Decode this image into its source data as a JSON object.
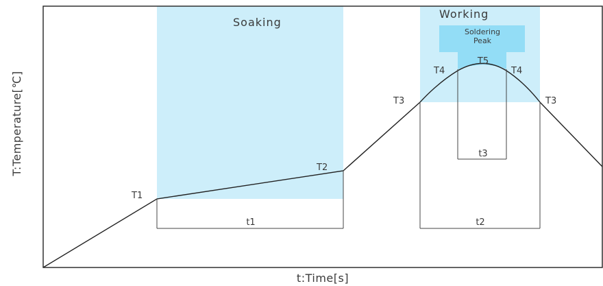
{
  "axes": {
    "x_label": "t:Time[s]",
    "y_label": "T:Temperature[℃]"
  },
  "zones": {
    "soaking": "Soaking",
    "working": "Working",
    "peak_line1": "Soldering",
    "peak_line2": "Peak"
  },
  "points": {
    "T1": "T1",
    "T2": "T2",
    "T3_left": "T3",
    "T3_right": "T3",
    "T4_left": "T4",
    "T4_right": "T4",
    "T5": "T5"
  },
  "durations": {
    "t1": "t1",
    "t2": "t2",
    "t3": "t3"
  },
  "colors": {
    "zone_fill": "#cdeefa",
    "peak_fill": "#93ddf6",
    "line": "#222222"
  }
}
